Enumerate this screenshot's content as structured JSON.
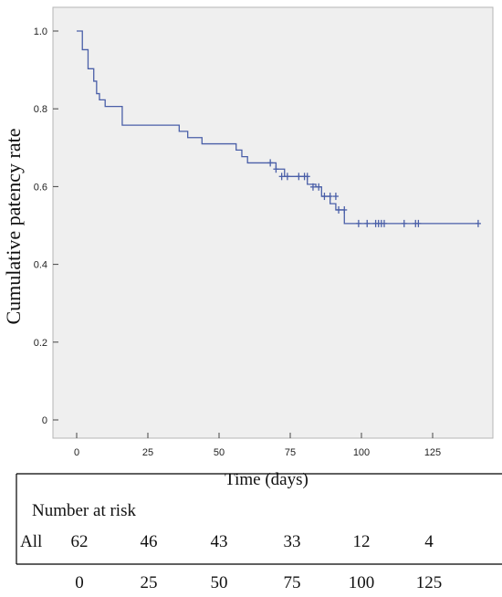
{
  "chart_data": {
    "type": "line",
    "ylabel": "Cumulative patency rate",
    "xlabel": "Time (days)",
    "xlim": [
      0,
      143
    ],
    "ylim": [
      0,
      1.0
    ],
    "xticks": [
      0,
      25,
      50,
      75,
      100,
      125
    ],
    "yticks": [
      "0",
      "0.2",
      "0.4",
      "0.6",
      "0.8",
      "1.0"
    ],
    "grid": false,
    "background": "#efefef",
    "line_color": "#4a5fa8",
    "series": [
      {
        "steps": [
          [
            0,
            1.0
          ],
          [
            2,
            0.952
          ],
          [
            4,
            0.903
          ],
          [
            6,
            0.871
          ],
          [
            7,
            0.839
          ],
          [
            8,
            0.823
          ],
          [
            10,
            0.806
          ],
          [
            16,
            0.758
          ],
          [
            36,
            0.742
          ],
          [
            39,
            0.726
          ],
          [
            44,
            0.71
          ],
          [
            56,
            0.694
          ],
          [
            58,
            0.677
          ],
          [
            60,
            0.661
          ],
          [
            70,
            0.645
          ],
          [
            73,
            0.626
          ],
          [
            81,
            0.606
          ],
          [
            84,
            0.599
          ],
          [
            86,
            0.575
          ],
          [
            89,
            0.556
          ],
          [
            91,
            0.54
          ],
          [
            94,
            0.505
          ],
          [
            141,
            0.505
          ]
        ],
        "censored": [
          [
            68,
            0.661
          ],
          [
            70,
            0.645
          ],
          [
            72,
            0.626
          ],
          [
            74,
            0.626
          ],
          [
            78,
            0.626
          ],
          [
            80,
            0.626
          ],
          [
            81,
            0.626
          ],
          [
            83,
            0.599
          ],
          [
            85,
            0.599
          ],
          [
            87,
            0.575
          ],
          [
            89,
            0.575
          ],
          [
            91,
            0.575
          ],
          [
            92,
            0.54
          ],
          [
            94,
            0.54
          ],
          [
            99,
            0.505
          ],
          [
            102,
            0.505
          ],
          [
            105,
            0.505
          ],
          [
            106,
            0.505
          ],
          [
            107,
            0.505
          ],
          [
            108,
            0.505
          ],
          [
            115,
            0.505
          ],
          [
            119,
            0.505
          ],
          [
            120,
            0.505
          ],
          [
            141,
            0.505
          ]
        ]
      }
    ],
    "risk_table": {
      "title": "Number at risk",
      "group": "All",
      "times": [
        "0",
        "25",
        "50",
        "75",
        "100",
        "125"
      ],
      "counts": [
        "62",
        "46",
        "43",
        "33",
        "12",
        "4"
      ]
    }
  }
}
